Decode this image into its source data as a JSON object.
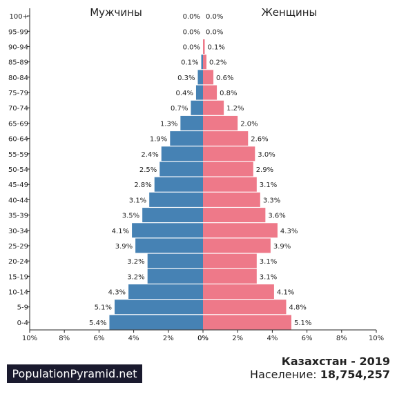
{
  "chart_data": {
    "type": "bar",
    "orientation": "horizontal-pyramid",
    "categories": [
      "0-4",
      "5-9",
      "10-14",
      "15-19",
      "20-24",
      "25-29",
      "30-34",
      "35-39",
      "40-44",
      "45-49",
      "50-54",
      "55-59",
      "60-64",
      "65-69",
      "70-74",
      "75-79",
      "80-84",
      "85-89",
      "90-94",
      "95-99",
      "100+"
    ],
    "series": [
      {
        "name": "Мужчины",
        "color": "#4682b4",
        "values": [
          5.4,
          5.1,
          4.3,
          3.2,
          3.2,
          3.9,
          4.1,
          3.5,
          3.1,
          2.8,
          2.5,
          2.4,
          1.9,
          1.3,
          0.7,
          0.4,
          0.3,
          0.1,
          0.0,
          0.0,
          0.0
        ],
        "labels": [
          "5.4%",
          "5.1%",
          "4.3%",
          "3.2%",
          "3.2%",
          "3.9%",
          "4.1%",
          "3.5%",
          "3.1%",
          "2.8%",
          "2.5%",
          "2.4%",
          "1.9%",
          "1.3%",
          "0.7%",
          "0.4%",
          "0.3%",
          "0.1%",
          "0.0%",
          "0.0%",
          "0.0%"
        ]
      },
      {
        "name": "Женщины",
        "color": "#ee7989",
        "values": [
          5.1,
          4.8,
          4.1,
          3.1,
          3.1,
          3.9,
          4.3,
          3.6,
          3.3,
          3.1,
          2.9,
          3.0,
          2.6,
          2.0,
          1.2,
          0.8,
          0.6,
          0.2,
          0.1,
          0.0,
          0.0
        ],
        "labels": [
          "5.1%",
          "4.8%",
          "4.1%",
          "3.1%",
          "3.1%",
          "3.9%",
          "4.3%",
          "3.6%",
          "3.3%",
          "3.1%",
          "2.9%",
          "3.0%",
          "2.6%",
          "2.0%",
          "1.2%",
          "0.8%",
          "0.6%",
          "0.2%",
          "0.1%",
          "0.0%",
          "0.0%"
        ]
      }
    ],
    "xlim": [
      0,
      10
    ],
    "xticks_left": [
      "10%",
      "8%",
      "6%",
      "4%",
      "2%",
      "0%"
    ],
    "xticks_right": [
      "0%",
      "2%",
      "4%",
      "6%",
      "8%",
      "10%"
    ],
    "grid": false
  },
  "footer": {
    "brand": "PopulationPyramid.net",
    "country": "Казахстан - 2019",
    "population_label": "Население:",
    "population_value": "18,754,257"
  }
}
